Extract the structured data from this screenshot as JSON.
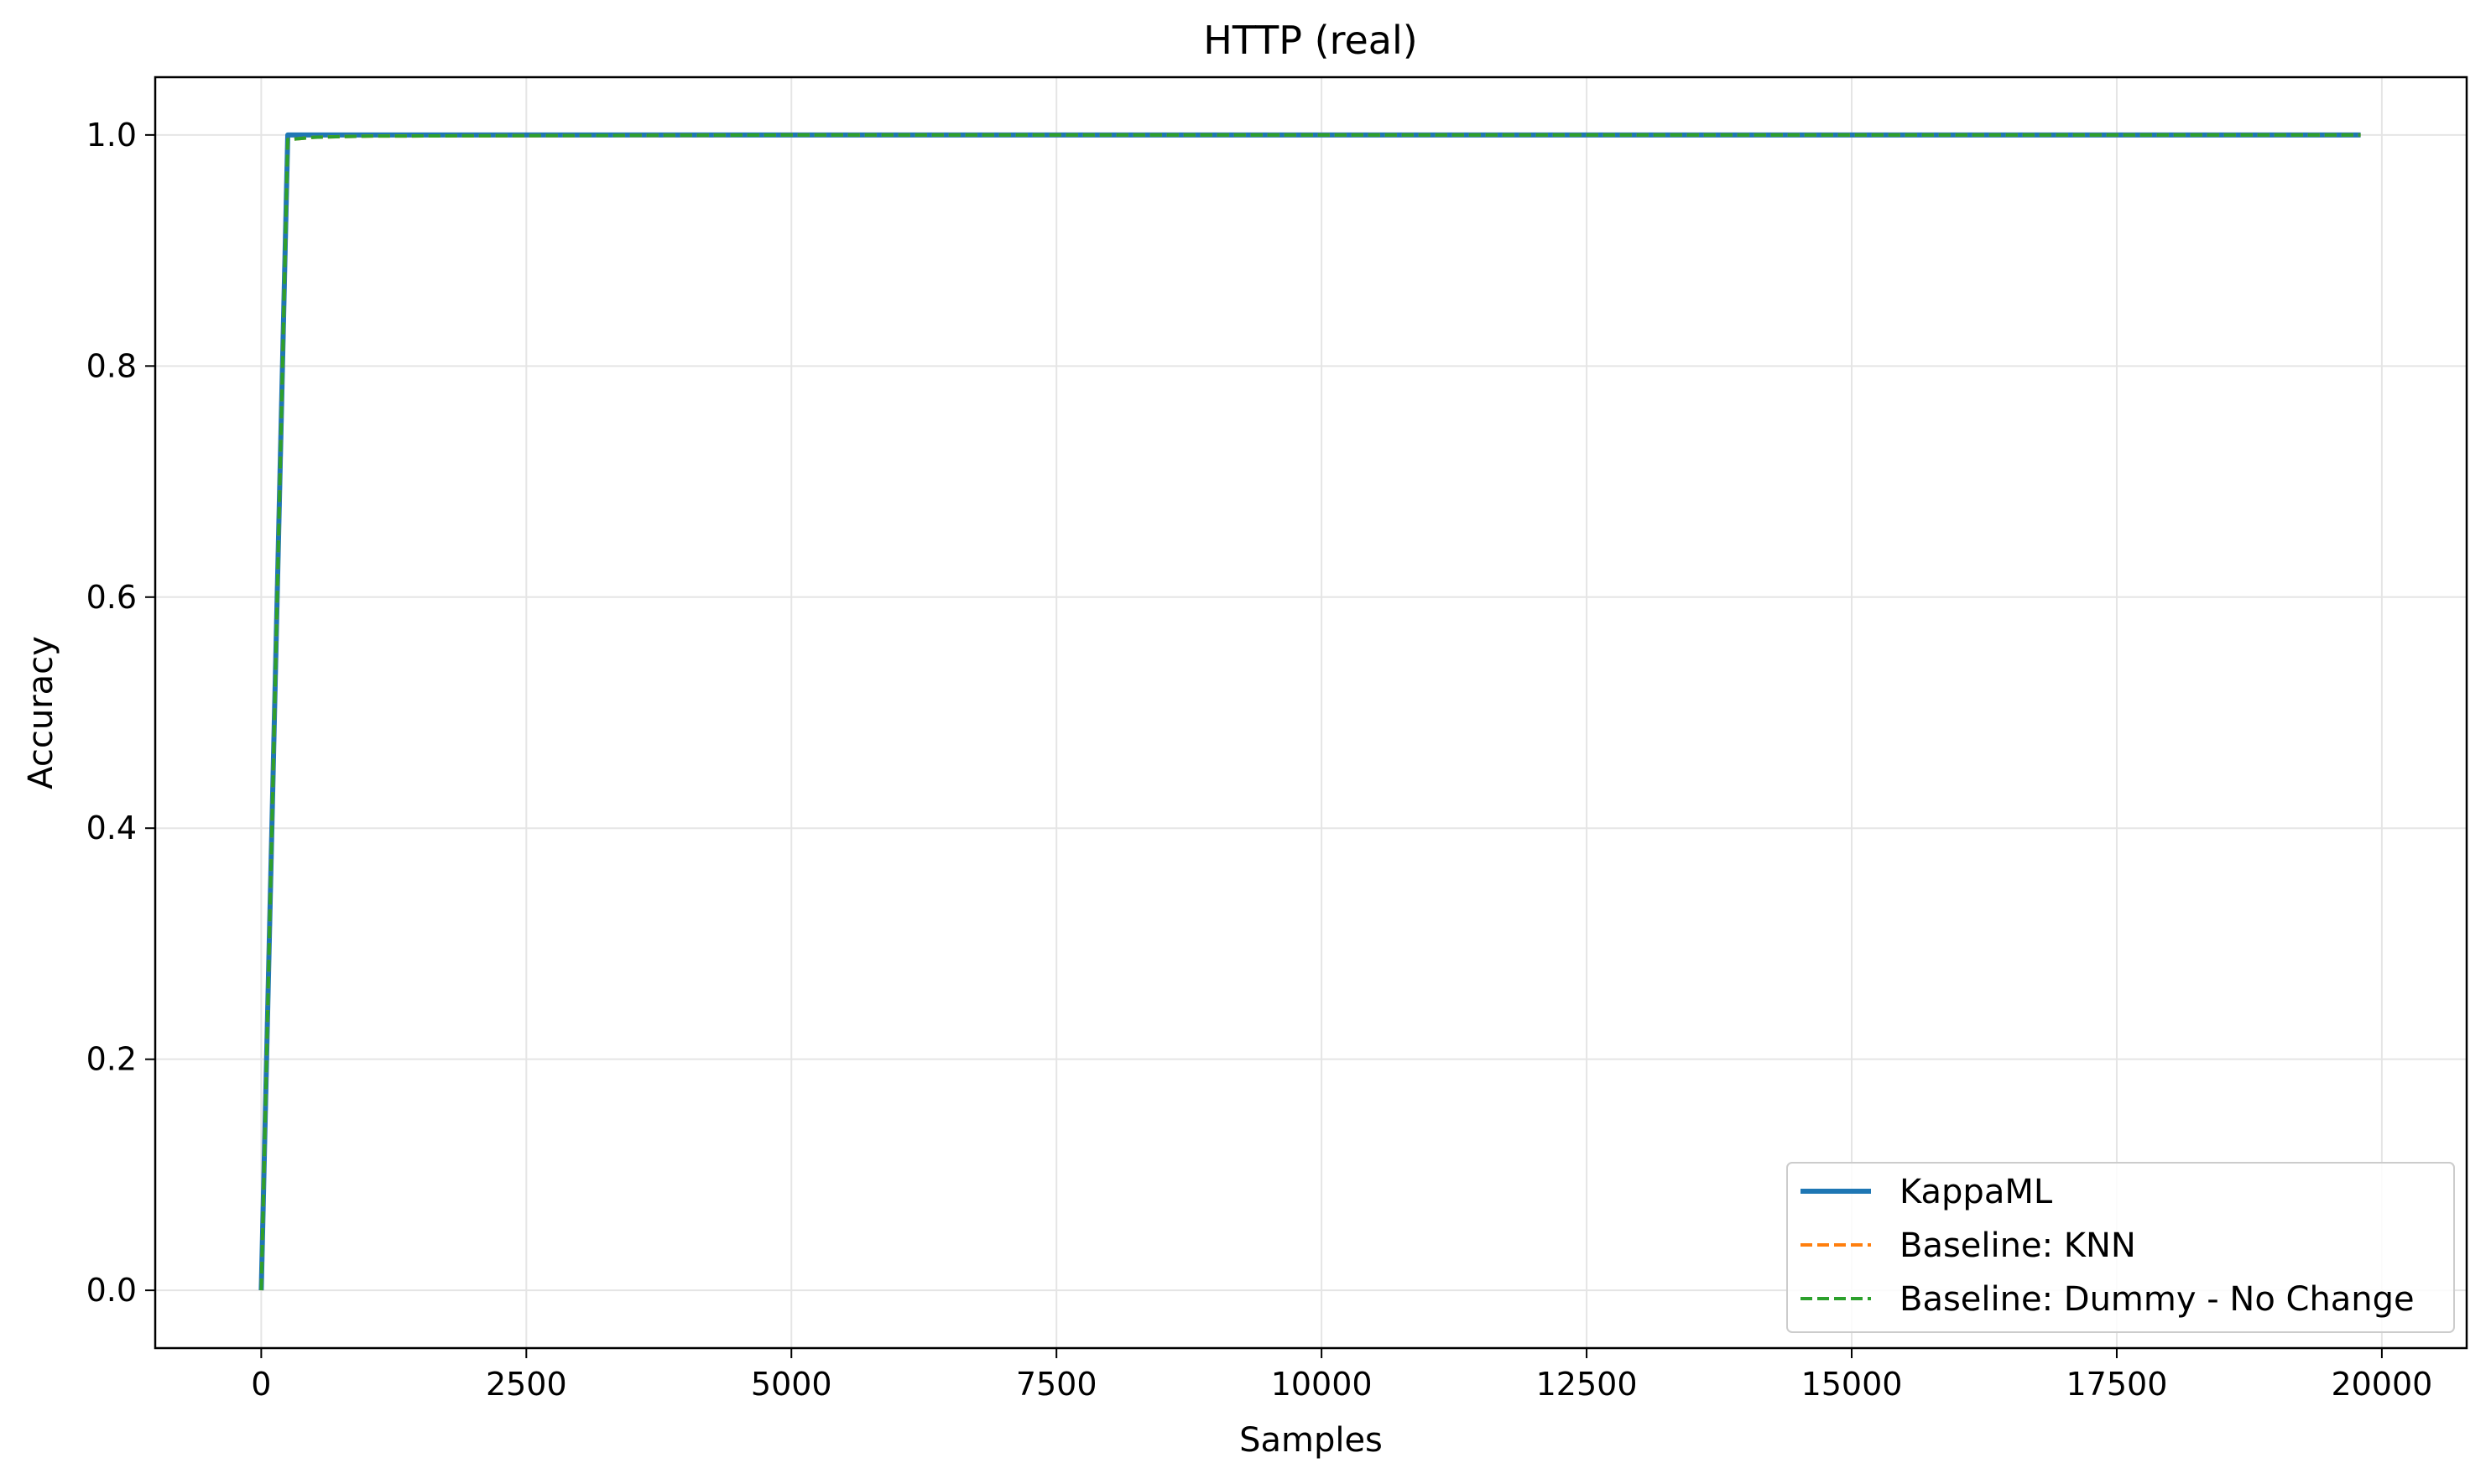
{
  "chart_data": {
    "type": "line",
    "title": "HTTP (real)",
    "xlabel": "Samples",
    "ylabel": "Accuracy",
    "xlim": [
      -1000,
      20800
    ],
    "ylim": [
      -0.05,
      1.05
    ],
    "xticks": [
      0,
      2500,
      5000,
      7500,
      10000,
      12500,
      15000,
      17500,
      20000
    ],
    "xtick_labels": [
      "0",
      "2500",
      "5000",
      "7500",
      "10000",
      "12500",
      "15000",
      "17500",
      "20000"
    ],
    "yticks": [
      0.0,
      0.2,
      0.4,
      0.6,
      0.8,
      1.0
    ],
    "ytick_labels": [
      "0.0",
      "0.2",
      "0.4",
      "0.6",
      "0.8",
      "1.0"
    ],
    "grid": true,
    "legend_position": "lower-right",
    "series": [
      {
        "name": "KappaML",
        "color": "#1f77b4",
        "style": "solid",
        "x": [
          0,
          250,
          500,
          1000,
          5000,
          10000,
          15000,
          19800
        ],
        "y": [
          0.0,
          1.0,
          1.0,
          1.0,
          1.0,
          1.0,
          1.0,
          1.0
        ]
      },
      {
        "name": "Baseline: KNN",
        "color": "#ff7f0e",
        "style": "dashed",
        "x": [
          0,
          250,
          500,
          1000,
          5000,
          10000,
          15000,
          19800
        ],
        "y": [
          0.0,
          0.996,
          0.998,
          0.999,
          1.0,
          1.0,
          1.0,
          1.0
        ]
      },
      {
        "name": "Baseline: Dummy - No Change",
        "color": "#2ca02c",
        "style": "dashed",
        "x": [
          0,
          250,
          500,
          1000,
          5000,
          10000,
          15000,
          19800
        ],
        "y": [
          0.0,
          0.996,
          0.998,
          0.999,
          1.0,
          1.0,
          1.0,
          1.0
        ]
      }
    ]
  }
}
